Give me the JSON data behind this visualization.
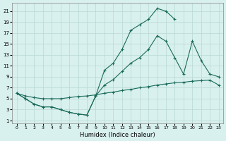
{
  "xlabel": "Humidex (Indice chaleur)",
  "background_color": "#d8f0ee",
  "grid_color": "#b8d8d4",
  "line_color": "#1a6b5a",
  "xlim": [
    -0.5,
    23.5
  ],
  "ylim": [
    0.5,
    22.5
  ],
  "xticks": [
    0,
    1,
    2,
    3,
    4,
    5,
    6,
    7,
    8,
    9,
    10,
    11,
    12,
    13,
    14,
    15,
    16,
    17,
    18,
    19,
    20,
    21,
    22,
    23
  ],
  "yticks": [
    1,
    3,
    5,
    7,
    9,
    11,
    13,
    15,
    17,
    19,
    21
  ],
  "line1_x": [
    0,
    1,
    2,
    3,
    4,
    5,
    6,
    7,
    8,
    9,
    10,
    11,
    12,
    13,
    14,
    15,
    16,
    17,
    18
  ],
  "line1_y": [
    6.0,
    5.0,
    4.0,
    3.5,
    3.5,
    3.0,
    2.5,
    2.2,
    2.0,
    5.5,
    10.2,
    11.5,
    14.0,
    17.5,
    18.5,
    19.5,
    21.5,
    21.0,
    19.5
  ],
  "line2_x": [
    0,
    1,
    2,
    3,
    4,
    5,
    6,
    7,
    8,
    9,
    10,
    11,
    12,
    13,
    14,
    15,
    16,
    17,
    18,
    19,
    20,
    21,
    22,
    23
  ],
  "line2_y": [
    6.0,
    5.5,
    5.2,
    5.0,
    5.0,
    5.0,
    5.2,
    5.4,
    5.5,
    5.7,
    6.0,
    6.2,
    6.5,
    6.7,
    7.0,
    7.2,
    7.5,
    7.7,
    7.9,
    8.0,
    8.2,
    8.3,
    8.4,
    7.5
  ],
  "line3_x": [
    0,
    1,
    2,
    3,
    4,
    5,
    6,
    7,
    8,
    9,
    10,
    11,
    12,
    13,
    14,
    15,
    16,
    17,
    18,
    19,
    20,
    21,
    22,
    23
  ],
  "line3_y": [
    6.0,
    5.0,
    4.0,
    3.5,
    3.5,
    3.0,
    2.5,
    2.2,
    2.0,
    5.5,
    7.5,
    8.5,
    10.0,
    11.5,
    12.5,
    14.0,
    16.5,
    15.5,
    12.5,
    9.5,
    15.5,
    12.0,
    9.5,
    9.0
  ]
}
